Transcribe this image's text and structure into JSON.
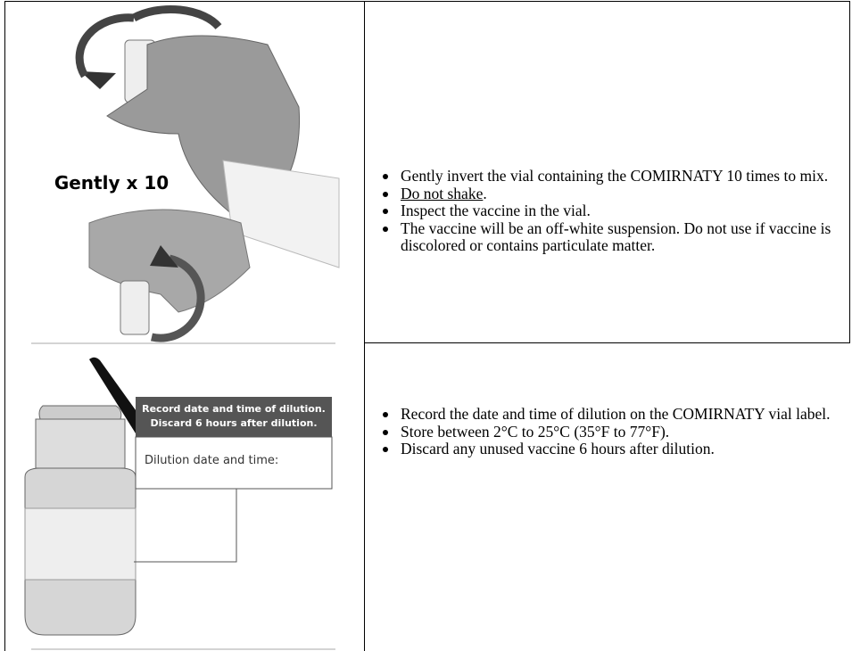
{
  "table": {
    "rows": [
      {
        "image": {
          "caption": "Gently x 10"
        },
        "bullets": [
          {
            "text": "Gently invert the vial containing the COMIRNATY 10 times to mix."
          },
          {
            "underlined": "Do not shake",
            "text": "."
          },
          {
            "text": "Inspect the vaccine in the vial."
          },
          {
            "text": "The vaccine will be an off-white suspension. Do not use if vaccine is discolored or contains particulate matter."
          }
        ]
      },
      {
        "image": {
          "banner": [
            "Record date and time of dilution.",
            "Discard 6 hours after dilution."
          ],
          "label": "Dilution date and time:"
        },
        "bullets": [
          {
            "text": "Record the date and time of dilution on the COMIRNATY vial label."
          },
          {
            "text": "Store between 2°C to 25°C (35°F to 77°F)."
          },
          {
            "text": "Discard any unused vaccine 6 hours after dilution."
          }
        ]
      }
    ]
  }
}
